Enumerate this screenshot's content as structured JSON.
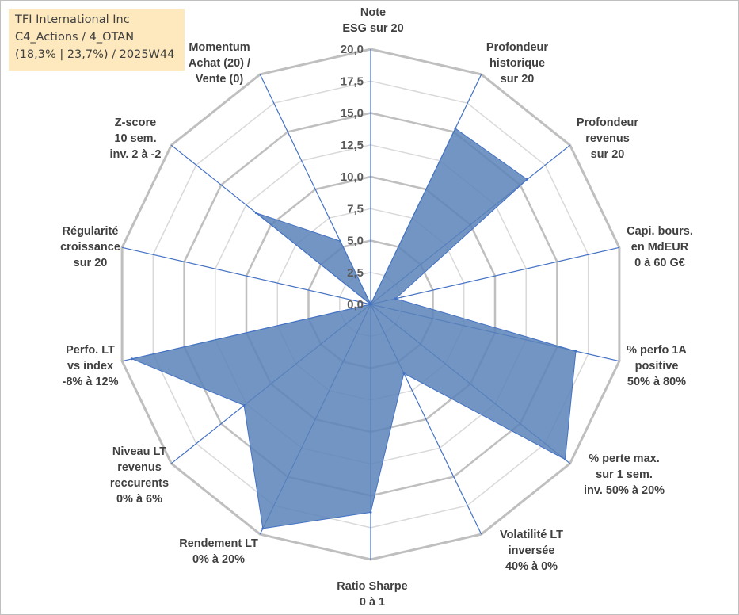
{
  "info_box": {
    "line1": "TFI International Inc",
    "line2": "C4_Actions / 4_OTAN",
    "line3": "(18,3% | 23,7%) / 2025W44"
  },
  "colors": {
    "fill": "#5b82b8",
    "stroke": "#4472c4",
    "grid_outer": "#bfbfbf",
    "grid_inner": "#d9d9d9",
    "spoke": "#4472c4",
    "info_bg": "#fde9bd"
  },
  "chart_data": {
    "type": "radar",
    "title": "",
    "rmin": 0,
    "rmax": 20,
    "tick_step": 2.5,
    "tick_labels": [
      "0,0",
      "2,5",
      "5,0",
      "7,5",
      "10,0",
      "12,5",
      "15,0",
      "17,5",
      "20,0"
    ],
    "categories": [
      [
        "Note",
        "ESG sur 20"
      ],
      [
        "Profondeur",
        "historique",
        "sur 20"
      ],
      [
        "Profondeur",
        "revenus",
        "sur 20"
      ],
      [
        "Capi. bours.",
        "en MdEUR",
        "0 à 60 G€"
      ],
      [
        "% perfo 1A",
        "positive",
        "50% à 80%"
      ],
      [
        "% perte max.",
        "sur 1 sem.",
        "inv. 50% à 20%"
      ],
      [
        "Volatilité LT",
        "inversée",
        "40% à 0%"
      ],
      [
        "Ratio Sharpe",
        "0 à 1"
      ],
      [
        "Rendement LT",
        "0% à 20%"
      ],
      [
        "Niveau LT",
        "revenus",
        "reccurents",
        "0% à 6%"
      ],
      [
        "Perfo. LT",
        "vs index",
        "-8% à 12%"
      ],
      [
        "Régularité",
        "croissance",
        "sur 20"
      ],
      [
        "Z-score",
        "10 sem.",
        "inv. 2 à -2"
      ],
      [
        "Momentum",
        "Achat (20) /",
        "Vente (0)"
      ]
    ],
    "series": [
      {
        "name": "TFI International Inc",
        "values": [
          0,
          15.3,
          15.7,
          2.0,
          16.5,
          19.5,
          6.0,
          16.3,
          19.5,
          12.7,
          19.2,
          0,
          11.5,
          5.5
        ]
      }
    ]
  }
}
